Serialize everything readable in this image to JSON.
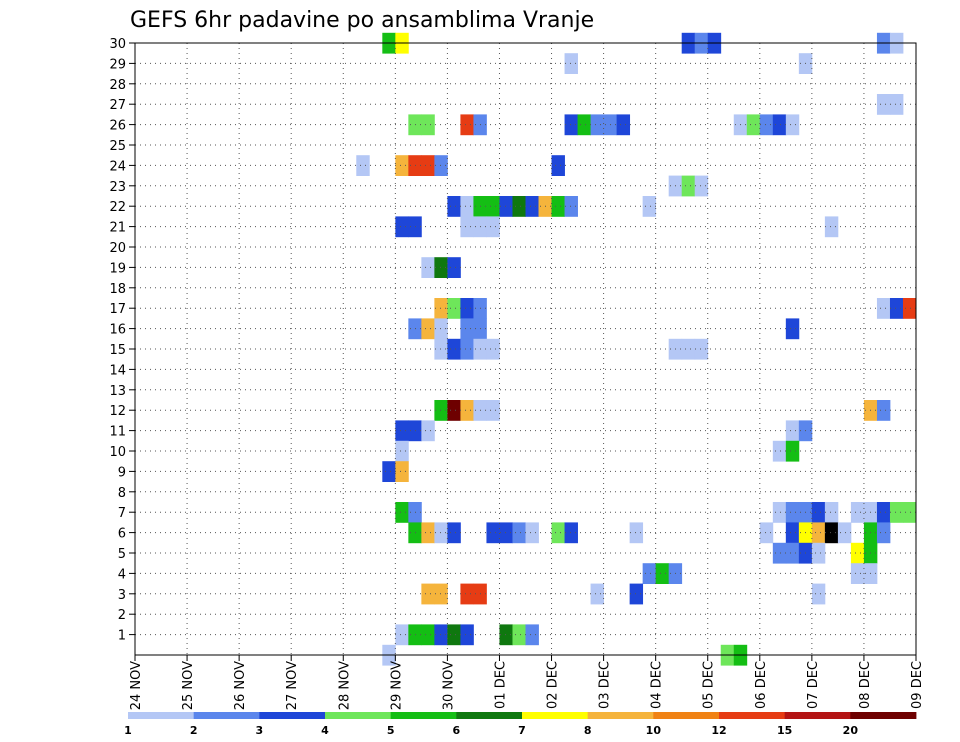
{
  "chart_data": {
    "type": "heatmap",
    "title": "GEFS 6hr padavine po ansamblima Vranje",
    "xlabel": "",
    "ylabel": "",
    "x_ticks": [
      "24 NOV",
      "25 NOV",
      "26 NOV",
      "27 NOV",
      "28 NOV",
      "29 NOV",
      "30 NOV",
      "01 DEC",
      "02 DEC",
      "03 DEC",
      "04 DEC",
      "05 DEC",
      "06 DEC",
      "07 DEC",
      "08 DEC",
      "09 DEC"
    ],
    "y_ticks": [
      "1",
      "2",
      "3",
      "4",
      "5",
      "6",
      "7",
      "8",
      "9",
      "10",
      "11",
      "12",
      "13",
      "14",
      "15",
      "16",
      "17",
      "18",
      "19",
      "20",
      "21",
      "22",
      "23",
      "24",
      "25",
      "26",
      "27",
      "28",
      "29",
      "30"
    ],
    "xlim": [
      0,
      60
    ],
    "ylim": [
      0,
      30
    ],
    "x_units": "6-hour steps from 24 NOV 00Z",
    "grid": true,
    "legend": {
      "position": "bottom",
      "labels": [
        "1",
        "2",
        "3",
        "4",
        "5",
        "6",
        "7",
        "8",
        "10",
        "12",
        "15",
        "20"
      ],
      "colors": [
        "#b4c7f5",
        "#5b86ec",
        "#1e46d8",
        "#6ee65a",
        "#14be14",
        "#0f780f",
        "#ffff00",
        "#f5b43c",
        "#f08214",
        "#e63c14",
        "#b41414",
        "#6e0000"
      ]
    },
    "cells": [
      [
        19.5,
        30,
        5
      ],
      [
        20.5,
        30,
        7
      ],
      [
        42.5,
        30,
        3
      ],
      [
        43.5,
        30,
        2
      ],
      [
        44.5,
        30,
        3
      ],
      [
        57.5,
        30,
        2
      ],
      [
        58.5,
        30,
        1
      ],
      [
        33.5,
        29,
        1
      ],
      [
        51.5,
        29,
        1
      ],
      [
        57.5,
        27,
        1
      ],
      [
        58.5,
        27,
        1
      ],
      [
        21.5,
        26,
        4
      ],
      [
        22.5,
        26,
        4
      ],
      [
        25.5,
        26,
        10
      ],
      [
        26.5,
        26,
        2
      ],
      [
        33.5,
        26,
        3
      ],
      [
        34.5,
        26,
        5
      ],
      [
        35.5,
        26,
        2
      ],
      [
        36.5,
        26,
        2
      ],
      [
        37.5,
        26,
        3
      ],
      [
        46.5,
        26,
        1
      ],
      [
        47.5,
        26,
        4
      ],
      [
        48.5,
        26,
        2
      ],
      [
        49.5,
        26,
        3
      ],
      [
        50.5,
        26,
        1
      ],
      [
        17.5,
        24,
        1
      ],
      [
        20.5,
        24,
        8
      ],
      [
        21.5,
        24,
        10
      ],
      [
        22.5,
        24,
        10
      ],
      [
        23.5,
        24,
        2
      ],
      [
        32.5,
        24,
        3
      ],
      [
        41.5,
        23,
        1
      ],
      [
        42.5,
        23,
        4
      ],
      [
        43.5,
        23,
        1
      ],
      [
        24.5,
        22,
        3
      ],
      [
        25.5,
        22,
        1
      ],
      [
        26.5,
        22,
        5
      ],
      [
        27.5,
        22,
        5
      ],
      [
        28.5,
        22,
        3
      ],
      [
        29.5,
        22,
        6
      ],
      [
        30.5,
        22,
        3
      ],
      [
        31.5,
        22,
        8
      ],
      [
        32.5,
        22,
        5
      ],
      [
        33.5,
        22,
        2
      ],
      [
        39.5,
        22,
        1
      ],
      [
        20.5,
        21,
        3
      ],
      [
        21.5,
        21,
        3
      ],
      [
        25.5,
        21,
        1
      ],
      [
        26.5,
        21,
        1
      ],
      [
        27.5,
        21,
        1
      ],
      [
        53.5,
        21,
        1
      ],
      [
        22.5,
        19,
        1
      ],
      [
        23.5,
        19,
        6
      ],
      [
        24.5,
        19,
        3
      ],
      [
        23.5,
        17,
        8
      ],
      [
        24.5,
        17,
        4
      ],
      [
        25.5,
        17,
        3
      ],
      [
        26.5,
        17,
        2
      ],
      [
        57.5,
        17,
        1
      ],
      [
        58.5,
        17,
        3
      ],
      [
        59.5,
        17,
        10
      ],
      [
        21.5,
        16,
        2
      ],
      [
        22.5,
        16,
        8
      ],
      [
        23.5,
        16,
        1
      ],
      [
        25.5,
        16,
        2
      ],
      [
        26.5,
        16,
        2
      ],
      [
        50.5,
        16,
        3
      ],
      [
        23.5,
        15,
        1
      ],
      [
        24.5,
        15,
        3
      ],
      [
        25.5,
        15,
        2
      ],
      [
        26.5,
        15,
        1
      ],
      [
        27.5,
        15,
        1
      ],
      [
        41.5,
        15,
        1
      ],
      [
        42.5,
        15,
        1
      ],
      [
        43.5,
        15,
        1
      ],
      [
        23.5,
        12,
        5
      ],
      [
        24.5,
        12,
        12
      ],
      [
        25.5,
        12,
        8
      ],
      [
        26.5,
        12,
        1
      ],
      [
        27.5,
        12,
        1
      ],
      [
        56.5,
        12,
        8
      ],
      [
        57.5,
        12,
        2
      ],
      [
        20.5,
        11,
        3
      ],
      [
        21.5,
        11,
        3
      ],
      [
        22.5,
        11,
        1
      ],
      [
        50.5,
        11,
        1
      ],
      [
        51.5,
        11,
        2
      ],
      [
        20.5,
        10,
        1
      ],
      [
        49.5,
        10,
        1
      ],
      [
        50.5,
        10,
        5
      ],
      [
        19.5,
        9,
        3
      ],
      [
        20.5,
        9,
        8
      ],
      [
        20.5,
        7,
        5
      ],
      [
        21.5,
        7,
        2
      ],
      [
        49.5,
        7,
        1
      ],
      [
        50.5,
        7,
        2
      ],
      [
        51.5,
        7,
        2
      ],
      [
        52.5,
        7,
        3
      ],
      [
        53.5,
        7,
        1
      ],
      [
        55.5,
        7,
        1
      ],
      [
        56.5,
        7,
        1
      ],
      [
        57.5,
        7,
        3
      ],
      [
        58.5,
        7,
        4
      ],
      [
        59.5,
        7,
        4
      ],
      [
        21.5,
        6,
        5
      ],
      [
        22.5,
        6,
        8
      ],
      [
        23.5,
        6,
        1
      ],
      [
        24.5,
        6,
        3
      ],
      [
        27.5,
        6,
        3
      ],
      [
        28.5,
        6,
        3
      ],
      [
        29.5,
        6,
        2
      ],
      [
        30.5,
        6,
        1
      ],
      [
        32.5,
        6,
        4
      ],
      [
        33.5,
        6,
        3
      ],
      [
        38.5,
        6,
        1
      ],
      [
        48.5,
        6,
        1
      ],
      [
        50.5,
        6,
        3
      ],
      [
        51.5,
        6,
        7
      ],
      [
        52.5,
        6,
        8
      ],
      [
        53.5,
        6,
        20
      ],
      [
        54.5,
        6,
        1
      ],
      [
        56.5,
        6,
        5
      ],
      [
        57.5,
        6,
        2
      ],
      [
        49.5,
        5,
        2
      ],
      [
        50.5,
        5,
        2
      ],
      [
        51.5,
        5,
        3
      ],
      [
        52.5,
        5,
        1
      ],
      [
        55.5,
        5,
        7
      ],
      [
        56.5,
        5,
        5
      ],
      [
        39.5,
        4,
        2
      ],
      [
        40.5,
        4,
        5
      ],
      [
        41.5,
        4,
        2
      ],
      [
        55.5,
        4,
        1
      ],
      [
        56.5,
        4,
        1
      ],
      [
        22.5,
        3,
        8
      ],
      [
        23.5,
        3,
        8
      ],
      [
        25.5,
        3,
        10
      ],
      [
        26.5,
        3,
        10
      ],
      [
        35.5,
        3,
        1
      ],
      [
        38.5,
        3,
        3
      ],
      [
        52.5,
        3,
        1
      ],
      [
        20.5,
        1,
        1
      ],
      [
        21.5,
        1,
        5
      ],
      [
        22.5,
        1,
        5
      ],
      [
        23.5,
        1,
        3
      ],
      [
        24.5,
        1,
        6
      ],
      [
        25.5,
        1,
        3
      ],
      [
        28.5,
        1,
        6
      ],
      [
        29.5,
        1,
        4
      ],
      [
        30.5,
        1,
        2
      ],
      [
        19.5,
        0,
        1
      ],
      [
        45.5,
        0,
        4
      ],
      [
        46.5,
        0,
        5
      ]
    ]
  }
}
